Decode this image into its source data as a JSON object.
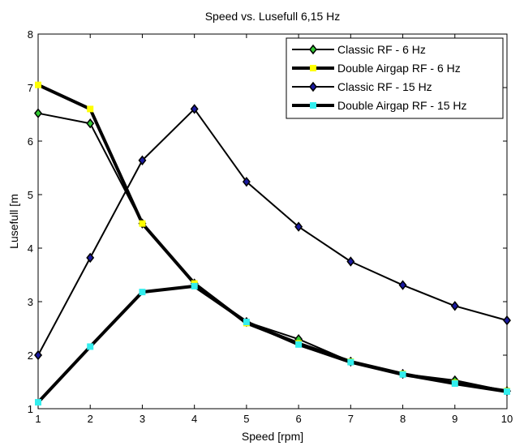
{
  "chart_data": {
    "type": "line",
    "title": "Speed vs.  Lusefull 6,15 Hz",
    "xlabel": "Speed [rpm]",
    "ylabel": "Lusefull [m",
    "xlim": [
      1,
      10
    ],
    "ylim": [
      1,
      8
    ],
    "xticks": [
      1,
      2,
      3,
      4,
      5,
      6,
      7,
      8,
      9,
      10
    ],
    "yticks": [
      1,
      2,
      3,
      4,
      5,
      6,
      7,
      8
    ],
    "grid": false,
    "legend_position": "top-right",
    "x": [
      1,
      2,
      3,
      4,
      5,
      6,
      7,
      8,
      9,
      10
    ],
    "series": [
      {
        "name": "Classic RF - 6 Hz",
        "values": [
          6.52,
          6.33,
          4.46,
          3.34,
          2.62,
          2.3,
          1.88,
          1.65,
          1.53,
          1.33
        ],
        "line_color": "#000000",
        "marker": "diamond",
        "marker_color": "#33cc33",
        "line_width": 2
      },
      {
        "name": "Double Airgap RF - 6 Hz",
        "values": [
          7.05,
          6.6,
          4.46,
          3.34,
          2.6,
          2.22,
          1.88,
          1.65,
          1.48,
          1.33
        ],
        "line_color": "#000000",
        "marker": "square",
        "marker_color": "#ffff00",
        "line_width": 4
      },
      {
        "name": "Classic RF - 15 Hz",
        "values": [
          2.0,
          3.82,
          5.64,
          6.6,
          5.24,
          4.4,
          3.75,
          3.31,
          2.92,
          2.65
        ],
        "line_color": "#000000",
        "marker": "diamond",
        "marker_color": "#1a1aa0",
        "line_width": 2
      },
      {
        "name": "Double Airgap RF - 15 Hz",
        "values": [
          1.12,
          2.16,
          3.18,
          3.29,
          2.62,
          2.2,
          1.87,
          1.64,
          1.47,
          1.32
        ],
        "line_color": "#000000",
        "marker": "square",
        "marker_color": "#33eeee",
        "line_width": 4
      }
    ]
  }
}
